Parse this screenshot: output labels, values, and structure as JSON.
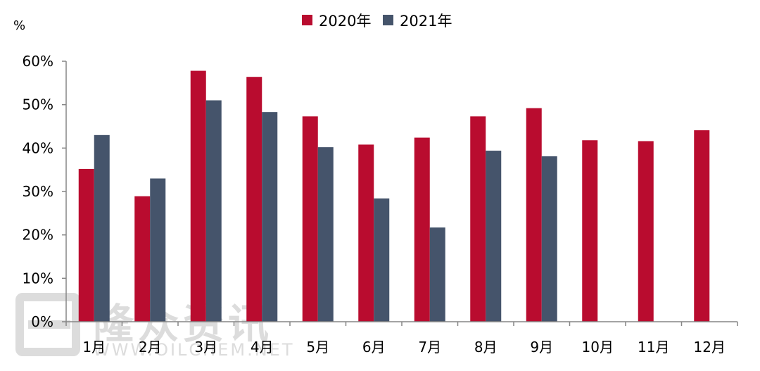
{
  "chart_data": {
    "type": "bar",
    "unit": "%",
    "categories": [
      "1月",
      "2月",
      "3月",
      "4月",
      "5月",
      "6月",
      "7月",
      "8月",
      "9月",
      "10月",
      "11月",
      "12月"
    ],
    "series": [
      {
        "name": "2020年",
        "color": "#b90c2f",
        "values": [
          35.2,
          28.9,
          57.8,
          56.4,
          47.3,
          40.8,
          42.4,
          47.3,
          49.2,
          41.8,
          41.6,
          44.1
        ]
      },
      {
        "name": "2021年",
        "color": "#45546b",
        "values": [
          43.0,
          33.0,
          51.0,
          48.3,
          40.2,
          28.4,
          21.7,
          39.4,
          38.1,
          null,
          null,
          null
        ]
      }
    ],
    "yticks": [
      "0%",
      "10%",
      "20%",
      "30%",
      "40%",
      "50%",
      "60%"
    ],
    "ylim": [
      0,
      60
    ],
    "legend_position": "top-center",
    "grid": false
  },
  "watermark": {
    "text": "隆众资讯",
    "url": "WWW.OILCHEM.NET"
  }
}
